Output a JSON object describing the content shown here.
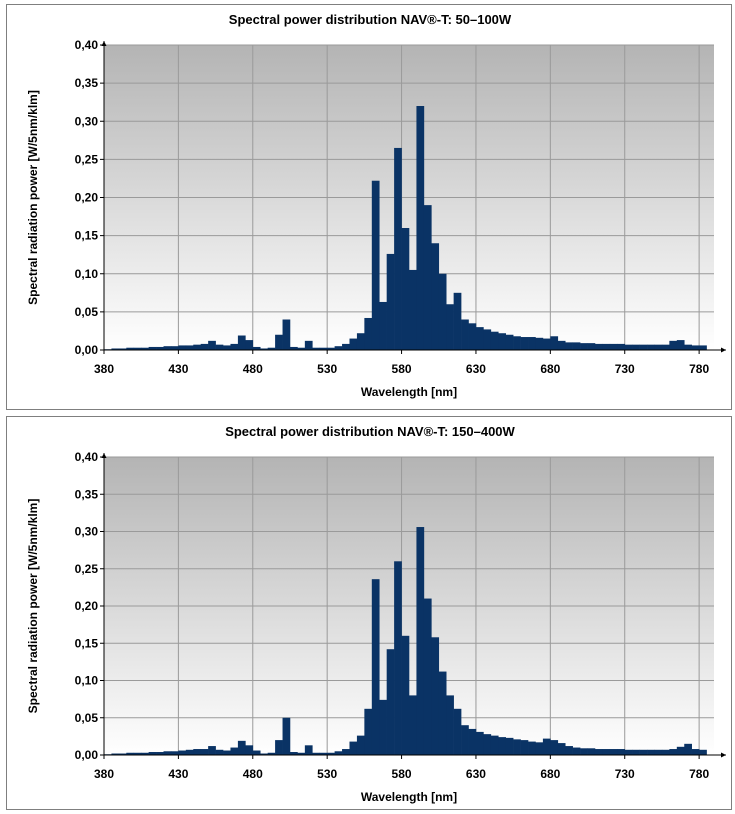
{
  "colors": {
    "bar": "#0a3365",
    "plot_top": "#b4b4b4",
    "plot_bottom": "#ffffff",
    "grid": "#9a9a9a"
  },
  "chart_data": [
    {
      "type": "bar",
      "title": "Spectral power distribution NAV®-T: 50–100W",
      "xlabel": "Wavelength [nm]",
      "ylabel": "Spectral radiation power [W/5nm/klm]",
      "xlim": [
        380,
        790
      ],
      "ylim": [
        0,
        0.4
      ],
      "x_ticks": [
        "380",
        "430",
        "480",
        "530",
        "580",
        "630",
        "680",
        "730",
        "780"
      ],
      "y_ticks": [
        "0,00",
        "0,05",
        "0,10",
        "0,15",
        "0,20",
        "0,25",
        "0,30",
        "0,35",
        "0,40"
      ],
      "grid": true,
      "bin_width": 5,
      "x": [
        380,
        385,
        390,
        395,
        400,
        405,
        410,
        415,
        420,
        425,
        430,
        435,
        440,
        445,
        450,
        455,
        460,
        465,
        470,
        475,
        480,
        485,
        490,
        495,
        500,
        505,
        510,
        515,
        520,
        525,
        530,
        535,
        540,
        545,
        550,
        555,
        560,
        565,
        570,
        575,
        580,
        585,
        590,
        595,
        600,
        605,
        610,
        615,
        620,
        625,
        630,
        635,
        640,
        645,
        650,
        655,
        660,
        665,
        670,
        675,
        680,
        685,
        690,
        695,
        700,
        705,
        710,
        715,
        720,
        725,
        730,
        735,
        740,
        745,
        750,
        755,
        760,
        765,
        770,
        775,
        780
      ],
      "values": [
        0.001,
        0.002,
        0.002,
        0.003,
        0.003,
        0.003,
        0.004,
        0.004,
        0.005,
        0.005,
        0.006,
        0.006,
        0.007,
        0.008,
        0.012,
        0.007,
        0.006,
        0.008,
        0.019,
        0.013,
        0.004,
        0.002,
        0.003,
        0.02,
        0.04,
        0.004,
        0.003,
        0.012,
        0.003,
        0.003,
        0.003,
        0.005,
        0.008,
        0.015,
        0.022,
        0.042,
        0.222,
        0.063,
        0.126,
        0.265,
        0.16,
        0.105,
        0.32,
        0.19,
        0.14,
        0.1,
        0.06,
        0.075,
        0.04,
        0.035,
        0.03,
        0.027,
        0.024,
        0.022,
        0.02,
        0.018,
        0.017,
        0.017,
        0.016,
        0.015,
        0.018,
        0.012,
        0.01,
        0.01,
        0.009,
        0.009,
        0.008,
        0.008,
        0.008,
        0.008,
        0.007,
        0.007,
        0.007,
        0.007,
        0.007,
        0.007,
        0.012,
        0.013,
        0.007,
        0.006,
        0.006
      ]
    },
    {
      "type": "bar",
      "title": "Spectral power distribution NAV®-T: 150–400W",
      "xlabel": "Wavelength [nm]",
      "ylabel": "Spectral radiation power [W/5nm/klm]",
      "xlim": [
        380,
        790
      ],
      "ylim": [
        0,
        0.4
      ],
      "x_ticks": [
        "380",
        "430",
        "480",
        "530",
        "580",
        "630",
        "680",
        "730",
        "780"
      ],
      "y_ticks": [
        "0,00",
        "0,05",
        "0,10",
        "0,15",
        "0,20",
        "0,25",
        "0,30",
        "0,35",
        "0,40"
      ],
      "grid": true,
      "bin_width": 5,
      "x": [
        380,
        385,
        390,
        395,
        400,
        405,
        410,
        415,
        420,
        425,
        430,
        435,
        440,
        445,
        450,
        455,
        460,
        465,
        470,
        475,
        480,
        485,
        490,
        495,
        500,
        505,
        510,
        515,
        520,
        525,
        530,
        535,
        540,
        545,
        550,
        555,
        560,
        565,
        570,
        575,
        580,
        585,
        590,
        595,
        600,
        605,
        610,
        615,
        620,
        625,
        630,
        635,
        640,
        645,
        650,
        655,
        660,
        665,
        670,
        675,
        680,
        685,
        690,
        695,
        700,
        705,
        710,
        715,
        720,
        725,
        730,
        735,
        740,
        745,
        750,
        755,
        760,
        765,
        770,
        775,
        780
      ],
      "values": [
        0.001,
        0.002,
        0.002,
        0.003,
        0.003,
        0.003,
        0.004,
        0.004,
        0.005,
        0.005,
        0.006,
        0.007,
        0.008,
        0.008,
        0.012,
        0.007,
        0.006,
        0.01,
        0.019,
        0.013,
        0.006,
        0.002,
        0.003,
        0.02,
        0.05,
        0.004,
        0.003,
        0.013,
        0.003,
        0.003,
        0.003,
        0.005,
        0.008,
        0.018,
        0.026,
        0.062,
        0.236,
        0.074,
        0.142,
        0.26,
        0.16,
        0.08,
        0.306,
        0.21,
        0.158,
        0.112,
        0.08,
        0.062,
        0.04,
        0.035,
        0.031,
        0.028,
        0.026,
        0.024,
        0.023,
        0.021,
        0.02,
        0.018,
        0.017,
        0.022,
        0.02,
        0.016,
        0.012,
        0.01,
        0.009,
        0.009,
        0.008,
        0.008,
        0.008,
        0.008,
        0.007,
        0.007,
        0.007,
        0.007,
        0.007,
        0.007,
        0.008,
        0.011,
        0.015,
        0.008,
        0.007
      ]
    }
  ]
}
